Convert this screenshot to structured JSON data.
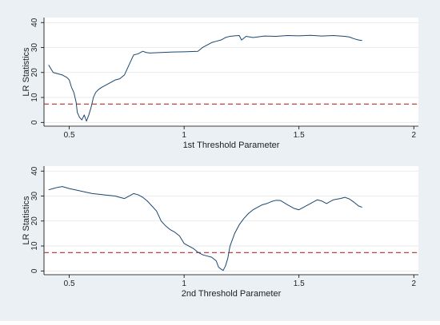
{
  "figure": {
    "background_color": "#eaf0f4",
    "plot_area_color": "#ffffff",
    "grid_color": "#e5e5e5"
  },
  "chart_data": [
    {
      "type": "line",
      "title": "",
      "xlabel": "1st Threshold Parameter",
      "ylabel": "LR Statistics",
      "xlim": [
        0.39,
        2.02
      ],
      "ylim": [
        -1.5,
        42
      ],
      "x_ticks": [
        0.5,
        1,
        1.5,
        2
      ],
      "x_tick_labels": [
        "0.5",
        "1",
        "1.5",
        "2"
      ],
      "y_ticks": [
        0,
        10,
        20,
        30,
        40
      ],
      "y_tick_labels": [
        "0",
        "10",
        "20",
        "30",
        "40"
      ],
      "grid": true,
      "line_color": "#1a476f",
      "reference_line": {
        "y": 7.35,
        "color": "#c02a2a",
        "style": "dashed"
      },
      "series": [
        {
          "x": [
            0.41,
            0.42,
            0.43,
            0.45,
            0.47,
            0.49,
            0.5,
            0.51,
            0.52,
            0.53,
            0.535,
            0.545,
            0.555,
            0.565,
            0.575,
            0.585,
            0.595,
            0.605,
            0.615,
            0.625,
            0.64,
            0.66,
            0.68,
            0.7,
            0.72,
            0.74,
            0.75,
            0.76,
            0.77,
            0.78,
            0.8,
            0.82,
            0.835,
            0.85,
            0.9,
            0.95,
            1.0,
            1.06,
            1.08,
            1.1,
            1.12,
            1.14,
            1.16,
            1.18,
            1.2,
            1.22,
            1.24,
            1.25,
            1.27,
            1.3,
            1.35,
            1.4,
            1.45,
            1.5,
            1.55,
            1.6,
            1.65,
            1.7,
            1.72,
            1.74,
            1.76,
            1.775
          ],
          "y": [
            23,
            21.5,
            20,
            19.5,
            19,
            18,
            17,
            14,
            12,
            8,
            4,
            2,
            1,
            3,
            0.5,
            3,
            6,
            10,
            12,
            13,
            14,
            15,
            16,
            17,
            17.5,
            19,
            21,
            23,
            25,
            27,
            27.5,
            28.5,
            28,
            27.8,
            28,
            28.2,
            28.3,
            28.5,
            30,
            31,
            32,
            32.5,
            33,
            34,
            34.5,
            34.7,
            34.8,
            33,
            34.5,
            34,
            34.6,
            34.5,
            34.8,
            34.7,
            34.9,
            34.6,
            34.8,
            34.5,
            34.2,
            33.5,
            33,
            32.8
          ]
        }
      ]
    },
    {
      "type": "line",
      "title": "",
      "xlabel": "2nd Threshold Parameter",
      "ylabel": "LR Statistics",
      "xlim": [
        0.39,
        2.02
      ],
      "ylim": [
        -1.5,
        42
      ],
      "x_ticks": [
        0.5,
        1,
        1.5,
        2
      ],
      "x_tick_labels": [
        "0.5",
        "1",
        "1.5",
        "2"
      ],
      "y_ticks": [
        0,
        10,
        20,
        30,
        40
      ],
      "y_tick_labels": [
        "0",
        "10",
        "20",
        "30",
        "40"
      ],
      "grid": true,
      "line_color": "#1a476f",
      "reference_line": {
        "y": 7.35,
        "color": "#c02a2a",
        "style": "dashed"
      },
      "series": [
        {
          "x": [
            0.41,
            0.43,
            0.45,
            0.47,
            0.5,
            0.55,
            0.6,
            0.65,
            0.7,
            0.72,
            0.74,
            0.76,
            0.78,
            0.8,
            0.82,
            0.84,
            0.86,
            0.88,
            0.9,
            0.92,
            0.94,
            0.96,
            0.98,
            1.0,
            1.02,
            1.04,
            1.06,
            1.08,
            1.1,
            1.12,
            1.14,
            1.15,
            1.16,
            1.17,
            1.18,
            1.19,
            1.2,
            1.22,
            1.24,
            1.26,
            1.28,
            1.3,
            1.32,
            1.34,
            1.36,
            1.38,
            1.4,
            1.42,
            1.45,
            1.48,
            1.5,
            1.52,
            1.55,
            1.58,
            1.6,
            1.62,
            1.65,
            1.68,
            1.7,
            1.72,
            1.74,
            1.76,
            1.775
          ],
          "y": [
            32.5,
            33,
            33.5,
            33.8,
            33,
            32,
            31,
            30.5,
            30,
            29.5,
            29,
            30,
            31,
            30.5,
            29.5,
            28,
            26,
            24,
            20,
            18,
            16.5,
            15.5,
            14,
            11,
            10,
            9,
            7.5,
            6.5,
            6,
            5.5,
            4,
            1.5,
            0.8,
            0.2,
            2,
            5,
            10,
            15,
            18.5,
            21,
            23,
            24.5,
            25.5,
            26.5,
            27,
            27.8,
            28.3,
            28.2,
            26.5,
            25,
            24.5,
            25.5,
            27,
            28.5,
            28,
            27,
            28.5,
            29,
            29.5,
            28.8,
            27.5,
            26,
            25.5
          ]
        }
      ]
    }
  ]
}
